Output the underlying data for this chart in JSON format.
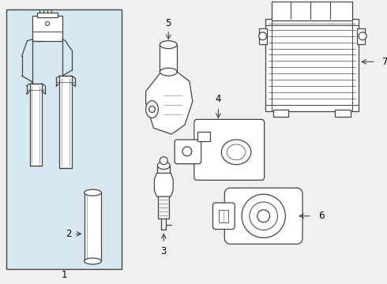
{
  "bg_color": "#f0f0f0",
  "box_bg": "#d8e8f0",
  "line_color": "#444444",
  "lw": 0.9,
  "fig_w": 4.9,
  "fig_h": 3.6,
  "dpi": 100
}
